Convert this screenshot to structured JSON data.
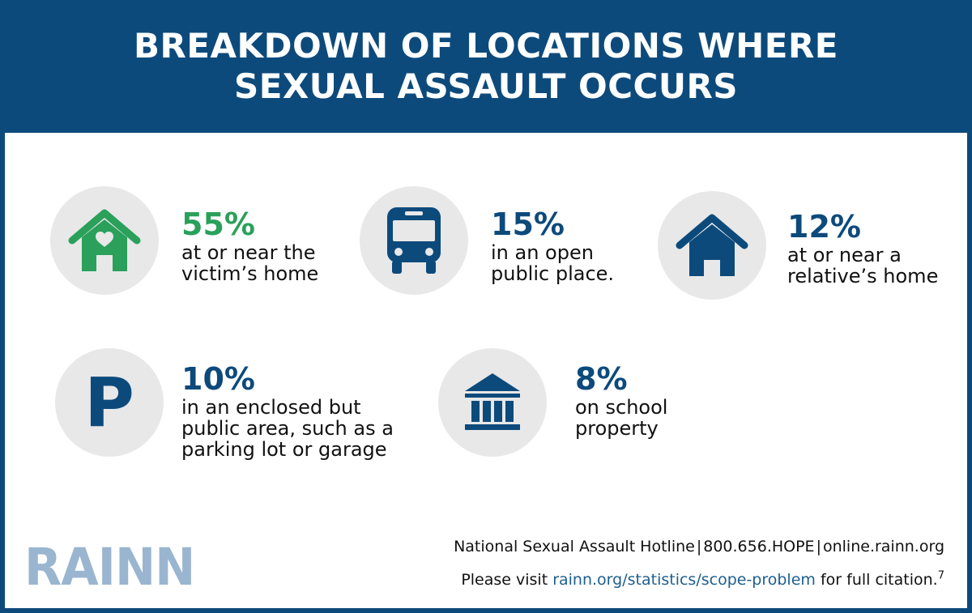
{
  "header": {
    "title_line1": "BREAKDOWN OF LOCATIONS WHERE",
    "title_line2": "SEXUAL ASSAULT OCCURS"
  },
  "stats": [
    {
      "percent": "55%",
      "line1": "at or near the",
      "line2": "victim’s home",
      "color": "#2aa05a",
      "icon": "house-heart-icon"
    },
    {
      "percent": "15%",
      "line1": "in an open",
      "line2": "public place.",
      "color": "#0d4a7c",
      "icon": "bus-icon"
    },
    {
      "percent": "12%",
      "line1": "at or near a",
      "line2": "relative’s home",
      "color": "#0d4a7c",
      "icon": "house-icon"
    },
    {
      "percent": "10%",
      "line1": "in an enclosed but",
      "line2": "public area, such as a",
      "line3": "parking lot or garage",
      "color": "#0d4a7c",
      "icon": "parking-icon",
      "icon_letter": "P"
    },
    {
      "percent": "8%",
      "line1": "on school",
      "line2": "property",
      "color": "#0d4a7c",
      "icon": "school-building-icon"
    }
  ],
  "logo": "RAINN",
  "footer": {
    "hotline_label": "National Sexual Assault Hotline",
    "separator": "|",
    "phone": "800.656.HOPE",
    "website": "online.rainn.org",
    "citation_prefix": "Please visit ",
    "citation_link": "rainn.org/statistics/scope-problem",
    "citation_suffix": " for full citation.",
    "footnote": "7"
  },
  "colors": {
    "navy": "#0d4a7c",
    "green": "#2aa05a",
    "circle_bg": "#e8e8e8",
    "logo": "#9ab5cf"
  }
}
